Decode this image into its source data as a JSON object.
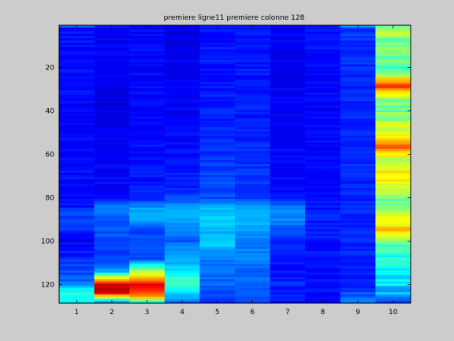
{
  "colors": {
    "figure_background": "#cccccc",
    "axes_border": "#000000",
    "colormap": "jet"
  },
  "chart_data": {
    "type": "heatmap",
    "title": "premiere ligne11 premiere colonne 128",
    "xlabel": "",
    "ylabel": "",
    "x_ticks": [
      "1",
      "2",
      "3",
      "4",
      "5",
      "6",
      "7",
      "8",
      "9",
      "10"
    ],
    "y_ticks": [
      "20",
      "40",
      "60",
      "80",
      "100",
      "120"
    ],
    "y_tick_values": [
      20,
      40,
      60,
      80,
      100,
      120
    ],
    "columns": 10,
    "rows": 128,
    "xlim": [
      0.5,
      10.5
    ],
    "ylim": [
      0.5,
      128.5
    ],
    "y_direction": "reverse",
    "clim": [
      0,
      1
    ],
    "colorbar": false,
    "grid": false,
    "column_profiles": [
      [
        [
          1,
          0.22
        ],
        [
          2,
          0.14
        ],
        [
          40,
          0.13
        ],
        [
          84,
          0.13
        ],
        [
          86,
          0.2
        ],
        [
          92,
          0.18
        ],
        [
          100,
          0.12
        ],
        [
          118,
          0.22
        ],
        [
          121,
          0.32
        ],
        [
          124,
          0.4
        ],
        [
          128,
          0.36
        ]
      ],
      [
        [
          1,
          0.15
        ],
        [
          3,
          0.12
        ],
        [
          40,
          0.1
        ],
        [
          80,
          0.13
        ],
        [
          84,
          0.25
        ],
        [
          90,
          0.22
        ],
        [
          110,
          0.18
        ],
        [
          114,
          0.3
        ],
        [
          116,
          0.55
        ],
        [
          118,
          0.7
        ],
        [
          120,
          0.9
        ],
        [
          122,
          0.96
        ],
        [
          124,
          0.88
        ],
        [
          126,
          0.55
        ],
        [
          128,
          0.3
        ]
      ],
      [
        [
          1,
          0.13
        ],
        [
          40,
          0.12
        ],
        [
          80,
          0.15
        ],
        [
          85,
          0.28
        ],
        [
          88,
          0.3
        ],
        [
          95,
          0.2
        ],
        [
          108,
          0.18
        ],
        [
          112,
          0.45
        ],
        [
          115,
          0.62
        ],
        [
          118,
          0.76
        ],
        [
          120,
          0.88
        ],
        [
          123,
          0.82
        ],
        [
          126,
          0.68
        ],
        [
          128,
          0.4
        ]
      ],
      [
        [
          1,
          0.1
        ],
        [
          40,
          0.12
        ],
        [
          78,
          0.16
        ],
        [
          84,
          0.28
        ],
        [
          88,
          0.32
        ],
        [
          92,
          0.27
        ],
        [
          100,
          0.22
        ],
        [
          106,
          0.28
        ],
        [
          110,
          0.3
        ],
        [
          114,
          0.36
        ],
        [
          118,
          0.45
        ],
        [
          122,
          0.4
        ],
        [
          126,
          0.3
        ],
        [
          128,
          0.24
        ]
      ],
      [
        [
          1,
          0.14
        ],
        [
          40,
          0.15
        ],
        [
          80,
          0.2
        ],
        [
          84,
          0.3
        ],
        [
          90,
          0.34
        ],
        [
          96,
          0.3
        ],
        [
          100,
          0.34
        ],
        [
          106,
          0.26
        ],
        [
          112,
          0.24
        ],
        [
          120,
          0.22
        ],
        [
          128,
          0.18
        ]
      ],
      [
        [
          1,
          0.14
        ],
        [
          40,
          0.15
        ],
        [
          80,
          0.18
        ],
        [
          84,
          0.3
        ],
        [
          90,
          0.3
        ],
        [
          96,
          0.28
        ],
        [
          102,
          0.24
        ],
        [
          106,
          0.26
        ],
        [
          112,
          0.22
        ],
        [
          120,
          0.22
        ],
        [
          128,
          0.2
        ]
      ],
      [
        [
          1,
          0.12
        ],
        [
          40,
          0.11
        ],
        [
          80,
          0.14
        ],
        [
          84,
          0.24
        ],
        [
          90,
          0.26
        ],
        [
          94,
          0.2
        ],
        [
          100,
          0.16
        ],
        [
          110,
          0.14
        ],
        [
          120,
          0.16
        ],
        [
          128,
          0.14
        ]
      ],
      [
        [
          1,
          0.14
        ],
        [
          40,
          0.12
        ],
        [
          80,
          0.13
        ],
        [
          88,
          0.16
        ],
        [
          100,
          0.14
        ],
        [
          120,
          0.13
        ],
        [
          128,
          0.13
        ]
      ],
      [
        [
          1,
          0.28
        ],
        [
          2,
          0.18
        ],
        [
          10,
          0.17
        ],
        [
          40,
          0.16
        ],
        [
          80,
          0.16
        ],
        [
          100,
          0.16
        ],
        [
          120,
          0.15
        ],
        [
          124,
          0.2
        ],
        [
          128,
          0.24
        ]
      ],
      [
        [
          1,
          0.52
        ],
        [
          4,
          0.56
        ],
        [
          8,
          0.45
        ],
        [
          12,
          0.55
        ],
        [
          16,
          0.48
        ],
        [
          20,
          0.45
        ],
        [
          24,
          0.6
        ],
        [
          26,
          0.72
        ],
        [
          28,
          0.82
        ],
        [
          30,
          0.74
        ],
        [
          34,
          0.54
        ],
        [
          38,
          0.45
        ],
        [
          42,
          0.5
        ],
        [
          46,
          0.56
        ],
        [
          50,
          0.6
        ],
        [
          54,
          0.66
        ],
        [
          56,
          0.8
        ],
        [
          58,
          0.7
        ],
        [
          62,
          0.58
        ],
        [
          66,
          0.56
        ],
        [
          68,
          0.66
        ],
        [
          72,
          0.62
        ],
        [
          76,
          0.56
        ],
        [
          80,
          0.48
        ],
        [
          84,
          0.5
        ],
        [
          88,
          0.56
        ],
        [
          92,
          0.62
        ],
        [
          94,
          0.7
        ],
        [
          96,
          0.66
        ],
        [
          100,
          0.5
        ],
        [
          104,
          0.42
        ],
        [
          108,
          0.4
        ],
        [
          112,
          0.38
        ],
        [
          116,
          0.36
        ],
        [
          120,
          0.34
        ],
        [
          124,
          0.3
        ],
        [
          128,
          0.22
        ]
      ]
    ]
  }
}
